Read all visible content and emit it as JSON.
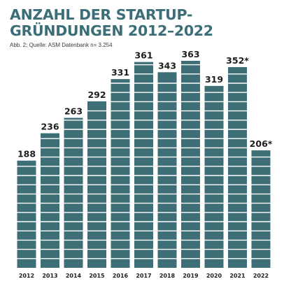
{
  "header": {
    "title_line1": "ANZAHL DER STARTUP-",
    "title_line2": "GRÜNDUNGEN 2012–2022",
    "source": "Abb. 2; Quelle: ASM Datenbank n= 3.254"
  },
  "colors": {
    "bar": "#3e6e76",
    "title": "#3b6e77",
    "label": "#1e1e1e",
    "segment_line": "#ffffff"
  },
  "chart_data": {
    "type": "bar",
    "title": "ANZAHL DER STARTUP-GRÜNDUNGEN 2012–2022",
    "xlabel": "",
    "ylabel": "",
    "categories": [
      "2012",
      "2013",
      "2014",
      "2015",
      "2016",
      "2017",
      "2018",
      "2019",
      "2020",
      "2021",
      "2022"
    ],
    "values": [
      188,
      236,
      263,
      292,
      331,
      361,
      343,
      363,
      319,
      352,
      206
    ],
    "data_labels": [
      "188",
      "236",
      "263",
      "292",
      "331",
      "361",
      "343",
      "363",
      "319",
      "352*",
      "206*"
    ],
    "ylim": [
      0,
      363
    ],
    "grid": false,
    "legend": "none"
  }
}
